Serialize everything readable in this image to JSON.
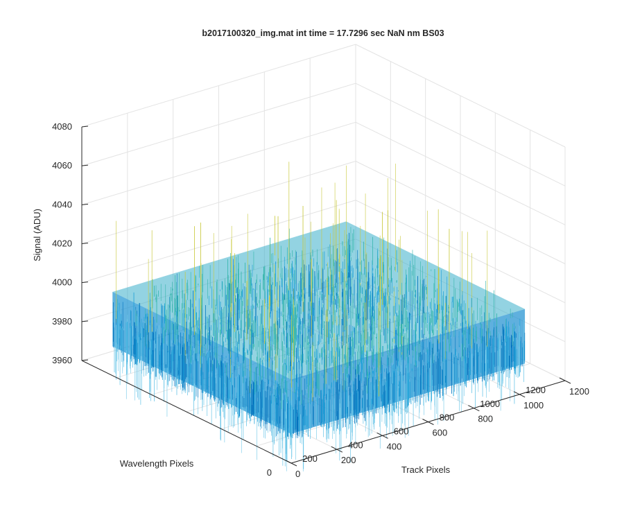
{
  "chart_data": {
    "type": "surface3d",
    "title": "b2017100320_img.mat int time = 17.7296 sec  NaN nm BS03",
    "xlabel": "Track Pixels",
    "ylabel": "Wavelength Pixels",
    "zlabel": "Signal (ADU)",
    "xlim": [
      0,
      1200
    ],
    "ylim": [
      0,
      1200
    ],
    "zlim": [
      3960,
      4080
    ],
    "x_ticks": [
      "0",
      "200",
      "400",
      "600",
      "800",
      "1000",
      "1200"
    ],
    "y_ticks": [
      "0",
      "200",
      "400",
      "600",
      "800",
      "1000",
      "1200"
    ],
    "z_ticks": [
      "3960",
      "3980",
      "4000",
      "4020",
      "4040",
      "4060",
      "4080"
    ],
    "data_extent": {
      "x": [
        0,
        1024
      ],
      "y": [
        0,
        1024
      ]
    },
    "signal_mean": 3990,
    "signal_range": [
      3960,
      4050
    ],
    "grid": true,
    "box": true,
    "colormap": "parula",
    "colors": {
      "low": "#0072bd",
      "mid": "#1ea0d8",
      "midhigh": "#33b5aa",
      "high": "#c8c83a",
      "axis": "#262626",
      "grid": "#e3e3e3"
    }
  }
}
